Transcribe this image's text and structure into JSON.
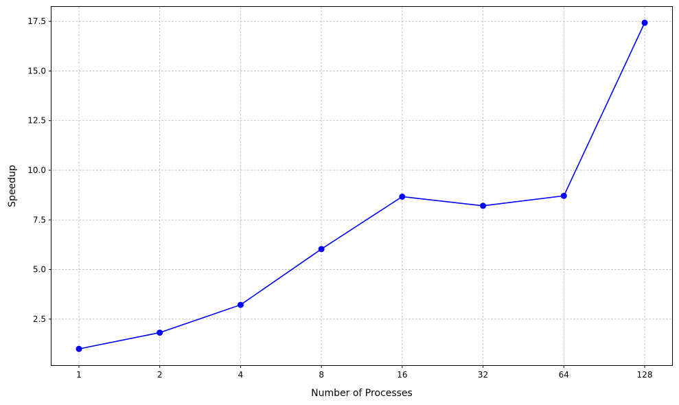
{
  "chart_data": {
    "type": "line",
    "title": "",
    "xlabel": "Number of Processes",
    "ylabel": "Speedup",
    "x_scale": "log2",
    "categories": [
      "1",
      "2",
      "4",
      "8",
      "16",
      "32",
      "64",
      "128"
    ],
    "x": [
      1,
      2,
      4,
      8,
      16,
      32,
      64,
      128
    ],
    "y_ticks": [
      "2.5",
      "5.0",
      "7.5",
      "10.0",
      "12.5",
      "15.0",
      "17.5"
    ],
    "y_tick_values": [
      2.5,
      5.0,
      7.5,
      10.0,
      12.5,
      15.0,
      17.5
    ],
    "ylim": [
      0.18,
      18.23
    ],
    "grid": true,
    "series": [
      {
        "values": [
          1.0,
          1.82,
          3.22,
          6.03,
          8.67,
          8.21,
          8.71,
          17.43
        ],
        "color": "#0000ff",
        "marker": "circle"
      }
    ]
  }
}
